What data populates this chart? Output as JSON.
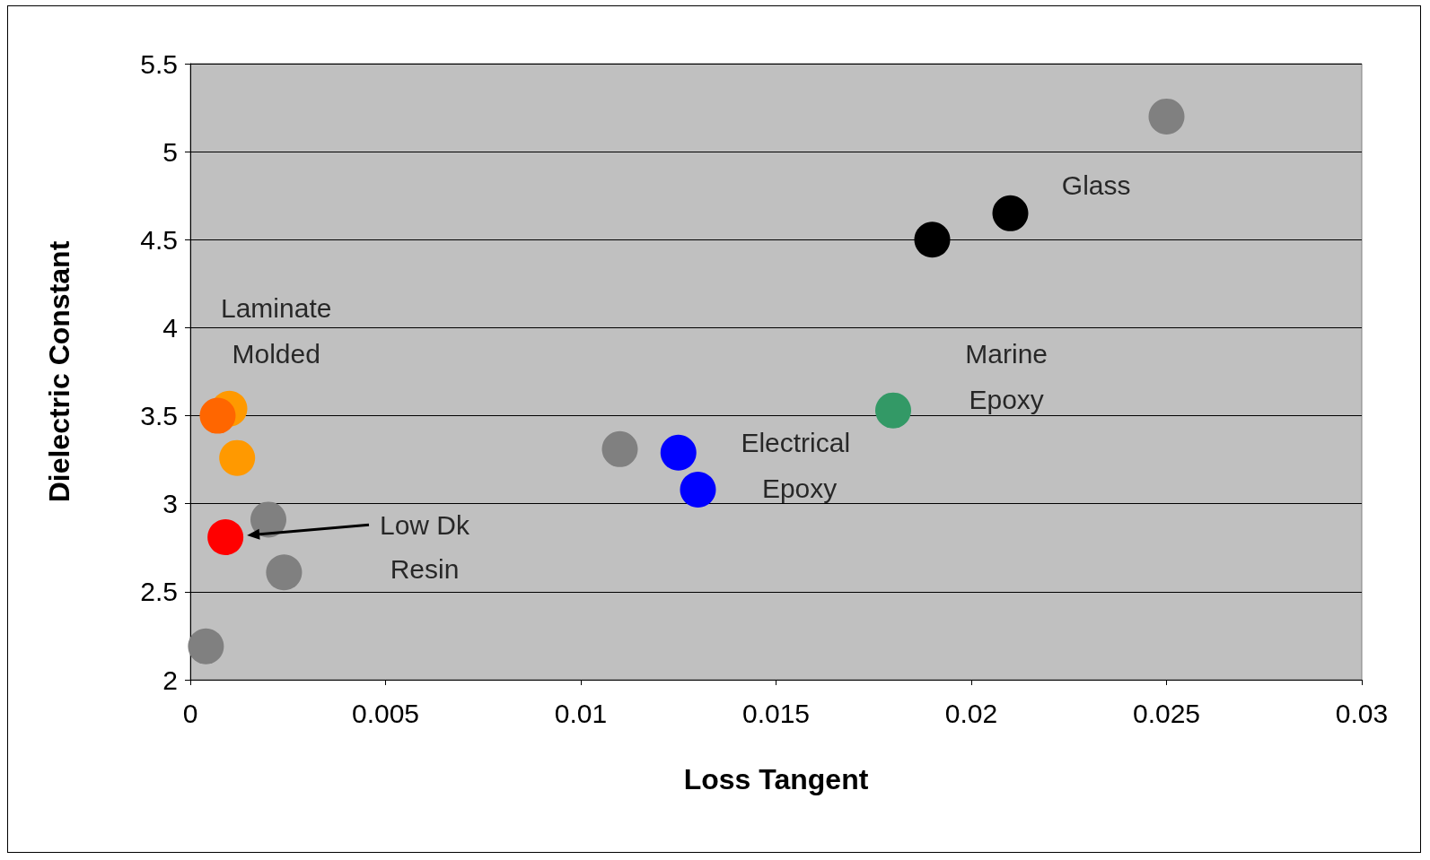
{
  "chart_data": {
    "type": "scatter",
    "xlabel": "Loss Tangent",
    "ylabel": "Dielectric Constant",
    "xlim": [
      0,
      0.03
    ],
    "xticks": [
      0,
      0.005,
      0.01,
      0.015,
      0.02,
      0.025,
      0.03
    ],
    "ylim": [
      2,
      5.5
    ],
    "yticks": [
      2,
      2.5,
      3,
      3.5,
      4,
      4.5,
      5,
      5.5
    ],
    "grid": "y",
    "marker": "circle",
    "series": [
      {
        "color": "#808080",
        "x": [
          0.025,
          0.011,
          0.002,
          0.0024,
          0.0004
        ],
        "values": [
          5.2,
          3.31,
          2.91,
          2.61,
          2.19
        ]
      },
      {
        "color": "#000000",
        "x": [
          0.021,
          0.019
        ],
        "values": [
          4.65,
          4.5
        ]
      },
      {
        "color": "#339966",
        "x": [
          0.018
        ],
        "values": [
          3.53
        ]
      },
      {
        "color": "#0000ff",
        "x": [
          0.0125,
          0.013
        ],
        "values": [
          3.29,
          3.08
        ]
      },
      {
        "color": "#ff9900",
        "x": [
          0.001,
          0.0012
        ],
        "values": [
          3.54,
          3.26
        ]
      },
      {
        "color": "#ff6600",
        "x": [
          0.0007
        ],
        "values": [
          3.5
        ]
      },
      {
        "color": "#ff0000",
        "x": [
          0.0009
        ],
        "values": [
          2.81
        ]
      }
    ],
    "annotations": [
      "Glass",
      "Marine",
      "Epoxy",
      "Laminate",
      "Molded",
      "Electrical",
      "Epoxy",
      "Low Dk",
      "Resin"
    ]
  }
}
